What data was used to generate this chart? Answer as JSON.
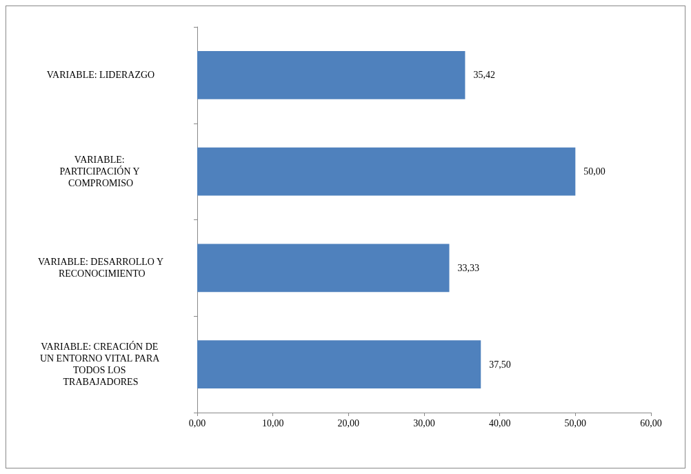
{
  "chart_data": {
    "type": "bar",
    "orientation": "horizontal",
    "categories": [
      "VARIABLE: LIDERAZGO",
      "VARIABLE: PARTICIPACIÓN Y COMPROMISO",
      "VARIABLE: DESARROLLO Y RECONOCIMIENTO",
      "VARIABLE: CREACIÓN DE UN ENTORNO VITAL PARA TODOS LOS TRABAJADORES"
    ],
    "values": [
      35.42,
      50.0,
      33.33,
      37.5
    ],
    "value_labels": [
      "35,42",
      "50,00",
      "33,33",
      "37,50"
    ],
    "color": "#4f81bd",
    "xlim": [
      0,
      60
    ],
    "xticks": [
      {
        "value": 0,
        "label": "0,00"
      },
      {
        "value": 10,
        "label": "10,00"
      },
      {
        "value": 20,
        "label": "20,00"
      },
      {
        "value": 30,
        "label": "30,00"
      },
      {
        "value": 40,
        "label": "40,00"
      },
      {
        "value": 50,
        "label": "50,00"
      },
      {
        "value": 60,
        "label": "60,00"
      }
    ],
    "grid": false
  }
}
